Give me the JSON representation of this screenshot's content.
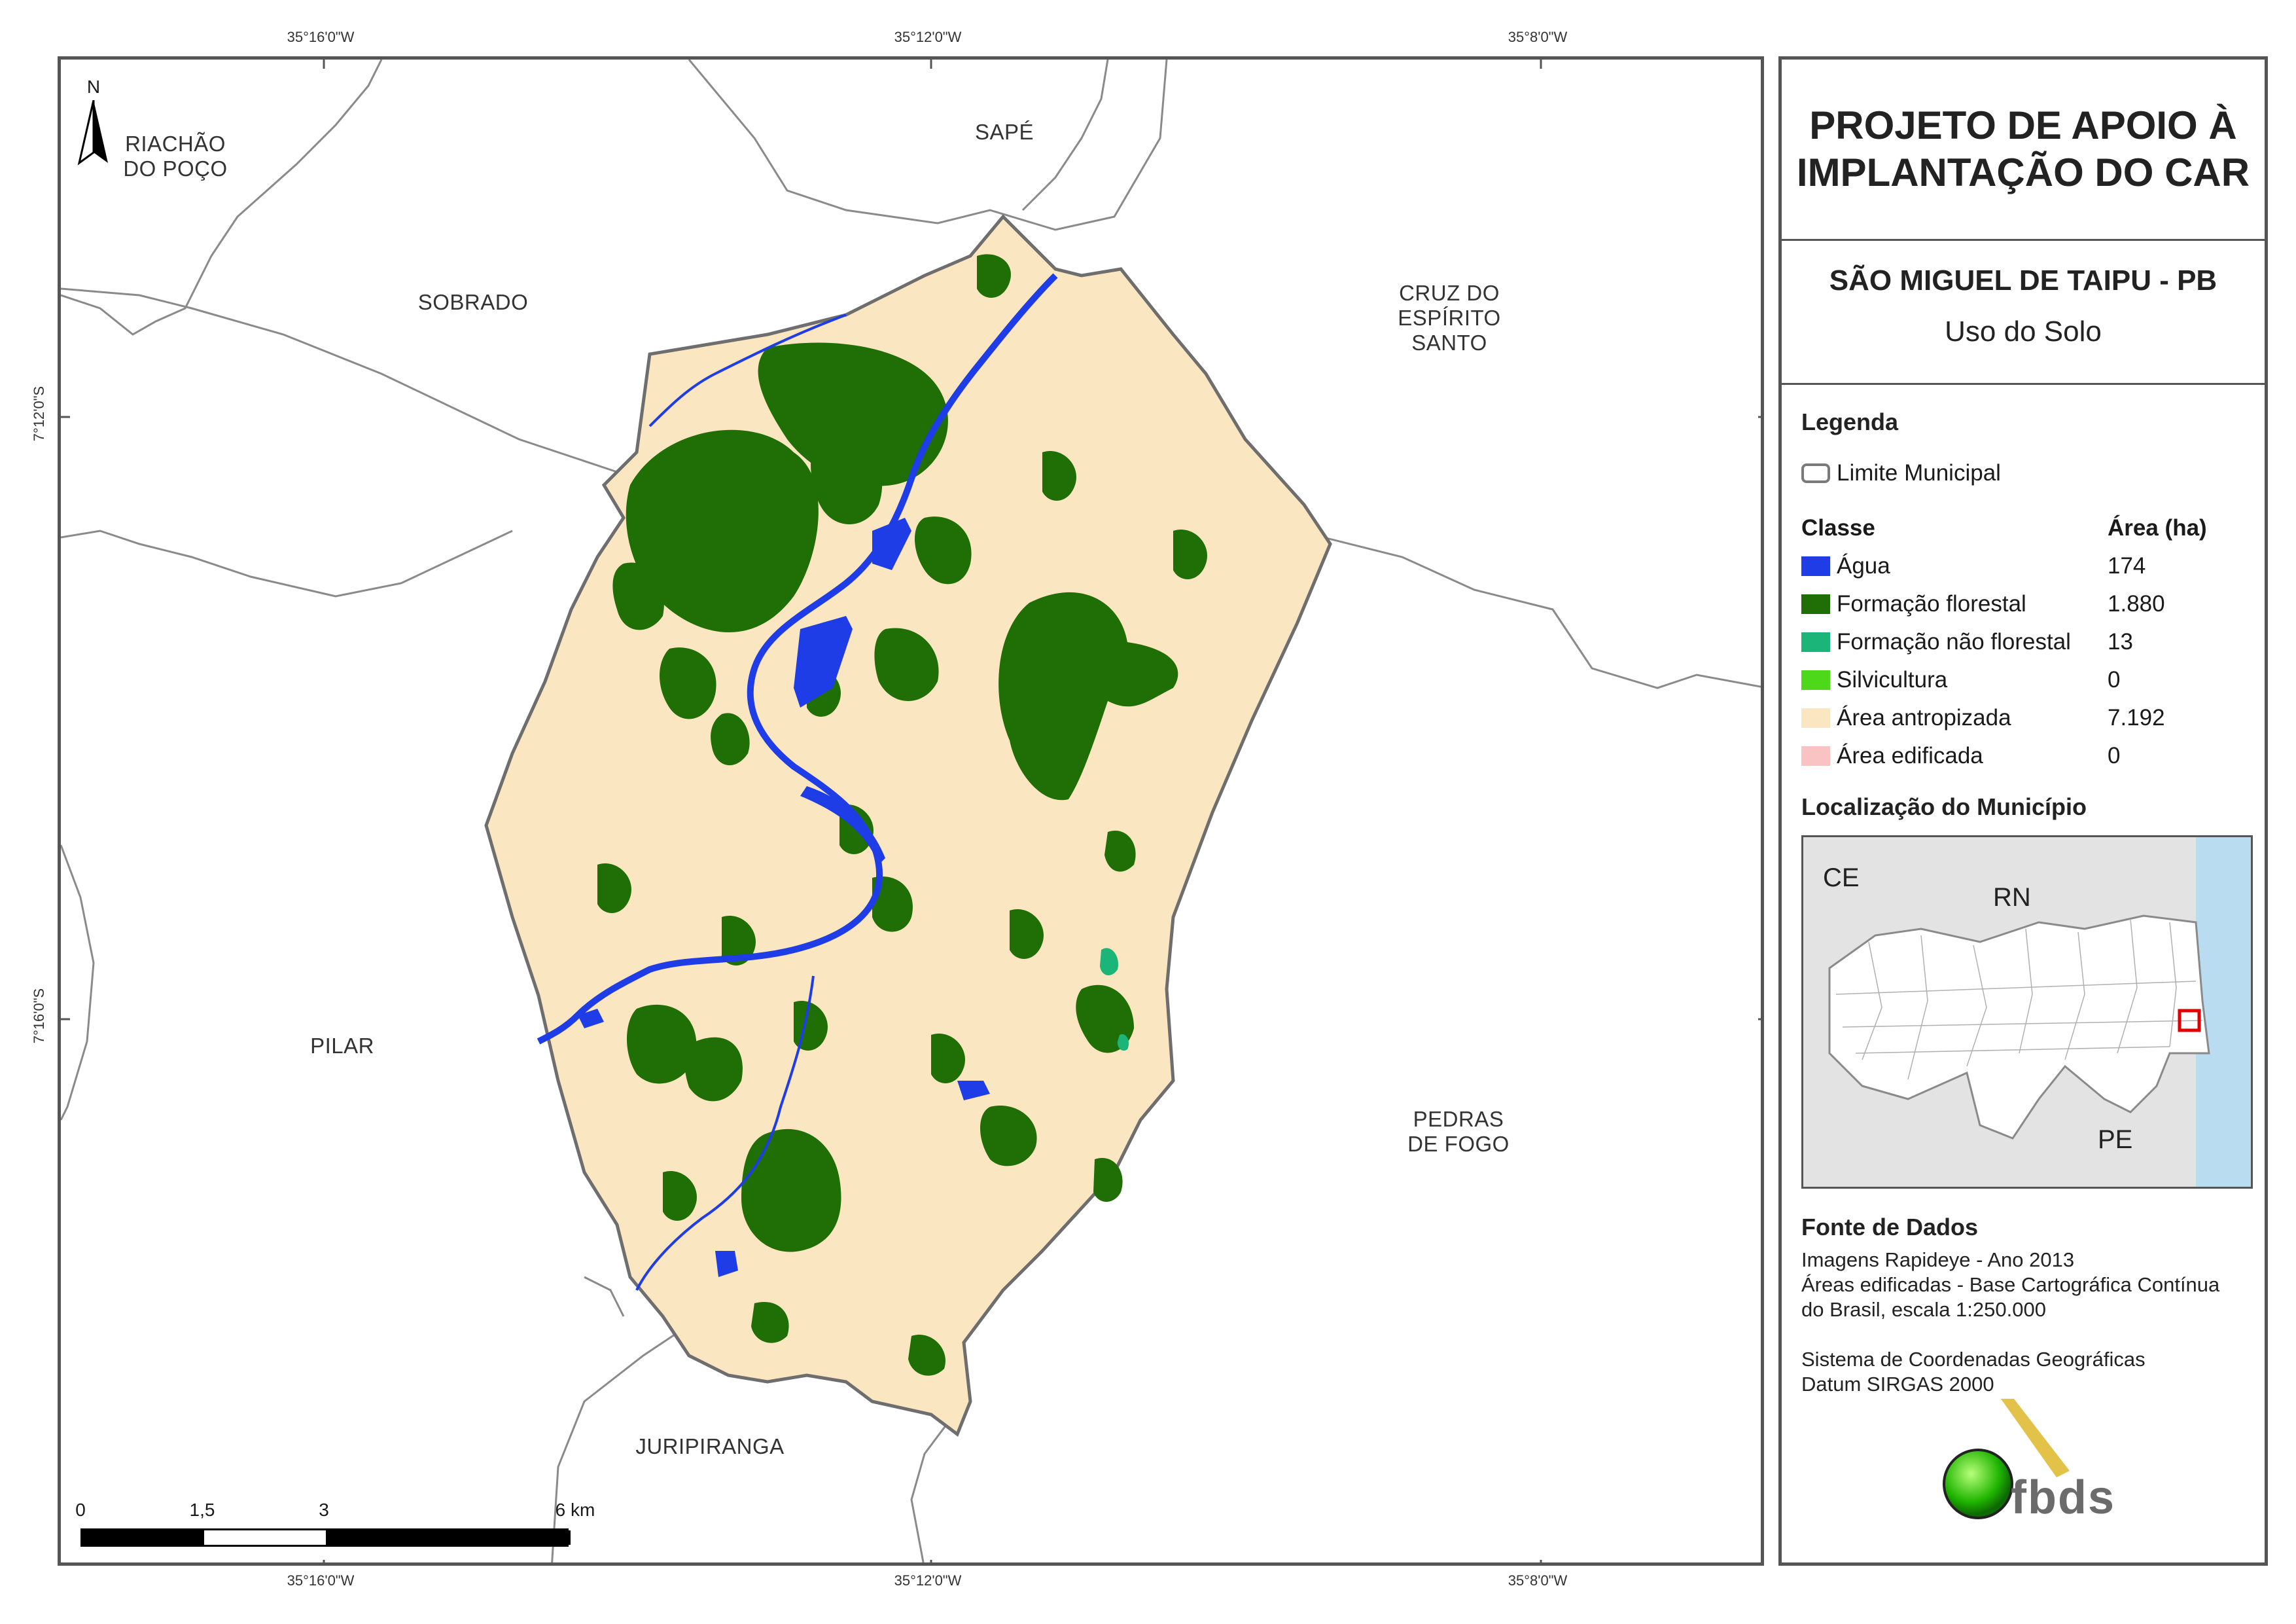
{
  "graticule": {
    "top": [
      "35°16'0\"W",
      "35°12'0\"W",
      "35°8'0\"W"
    ],
    "bottom": [
      "35°16'0\"W",
      "35°12'0\"W",
      "35°8'0\"W"
    ],
    "left": [
      "7°12'0\"S",
      "7°16'0\"S"
    ]
  },
  "north_arrow": {
    "letter": "N"
  },
  "neighbors": {
    "riachao": "RIACHÃO\nDO POÇO",
    "sape": "SAPÉ",
    "sobrado": "SOBRADO",
    "cruz": "CRUZ DO\nESPÍRITO\nSANTO",
    "pilar": "PILAR",
    "pedras": "PEDRAS\nDE FOGO",
    "juripiranga": "JURIPIRANGA"
  },
  "scale_bar": {
    "ticks": [
      "0",
      "1,5",
      "3",
      "6 km"
    ]
  },
  "panel": {
    "title": "PROJETO DE APOIO À\nIMPLANTAÇÃO DO CAR",
    "municipality": "SÃO MIGUEL DE TAIPU - PB",
    "theme": "Uso do Solo",
    "legend_title": "Legenda",
    "boundary_label": "Limite Municipal",
    "class_header": "Classe",
    "area_header": "Área (ha)",
    "classes": [
      {
        "label": "Água",
        "area": "174",
        "color": "#1f3de6"
      },
      {
        "label": "Formação florestal",
        "area": "1.880",
        "color": "#1f6e06"
      },
      {
        "label": "Formação não florestal",
        "area": "13",
        "color": "#1bb57a"
      },
      {
        "label": "Silvicultura",
        "area": "0",
        "color": "#4ed81a"
      },
      {
        "label": "Área antropizada",
        "area": "7.192",
        "color": "#fbe6c2"
      },
      {
        "label": "Área edificada",
        "area": "0",
        "color": "#f9c3c3"
      }
    ],
    "locator_title": "Localização do Município",
    "locator_labels": {
      "ce": "CE",
      "rn": "RN",
      "pe": "PE"
    },
    "source_title": "Fonte de Dados",
    "source_lines": "Imagens Rapideye - Ano 2013\nÁreas edificadas - Base Cartográfica Contínua\ndo Brasil, escala 1:250.000\n\nSistema de Coordenadas Geográficas\nDatum SIRGAS 2000",
    "logo_text": "fbds"
  },
  "colors": {
    "water": "#1f3de6",
    "forest": "#1f6e06",
    "nonforest": "#1bb57a",
    "anthropic": "#fbe6c2",
    "boundary": "#7a7a7a",
    "sea": "#b9dcf0"
  }
}
